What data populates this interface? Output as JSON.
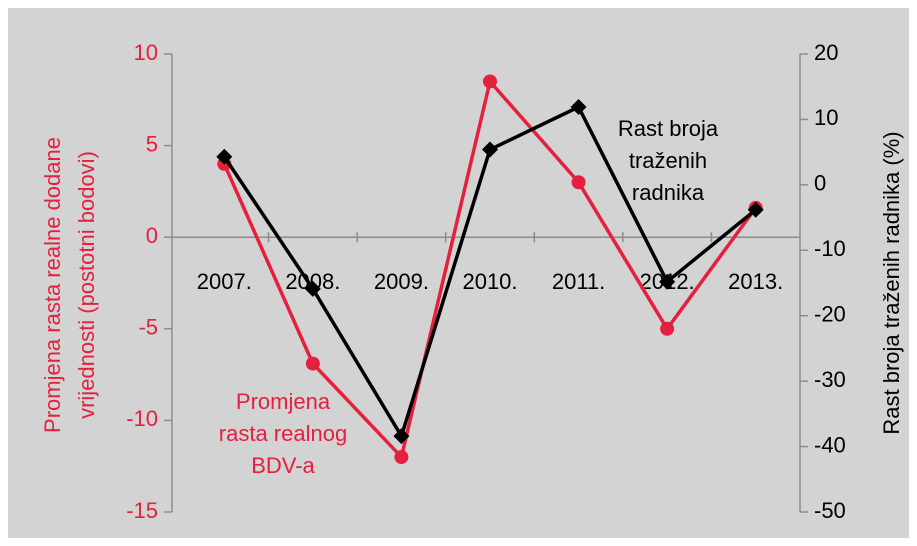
{
  "chart_data": {
    "type": "line",
    "y_label": [
      "Promjena rasta realne dodane",
      "vrijednosti (postotni bodovi)"
    ],
    "y2_label": "Rast broja traženih radnika (%)",
    "categories": [
      "2007.",
      "2008.",
      "2009.",
      "2010.",
      "2011.",
      "2012.",
      "2013."
    ],
    "ylim": [
      -15,
      10
    ],
    "yticks": [
      -15,
      -10,
      -5,
      0,
      5,
      10
    ],
    "y2lim": [
      -50,
      20
    ],
    "y2ticks": [
      -50,
      -40,
      -30,
      -20,
      -10,
      0,
      10,
      20
    ],
    "series": [
      {
        "name": [
          "Promjena",
          "rasta realnog",
          "BDV-a"
        ],
        "color": "#e5203f",
        "marker": "circle",
        "values": [
          4,
          -6.9,
          -12,
          8.5,
          3,
          -5,
          1.6
        ]
      },
      {
        "name": [
          "Rast broja",
          "traženih",
          "radnika"
        ],
        "color": "#000000",
        "marker": "diamond",
        "axis": "y2",
        "values": [
          4.3,
          -15.9,
          -38.4,
          5.4,
          11.9,
          -14.8,
          -3.8
        ]
      }
    ]
  }
}
